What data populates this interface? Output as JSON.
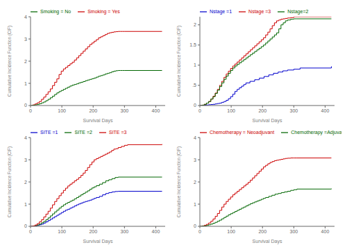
{
  "chart_data": [
    {
      "type": "step",
      "xlabel": "Survival Days",
      "ylabel": "Cumulative Incidence Function (CIF)",
      "xlim": [
        0,
        430
      ],
      "ylim": [
        0,
        4
      ],
      "xticks": [
        0,
        100,
        200,
        300,
        400
      ],
      "yticks": [
        0,
        1,
        2,
        3,
        4
      ],
      "grid": false,
      "legend": "upper left",
      "series": [
        {
          "name": "Smoking = Yes",
          "color": "#cc0000",
          "x": [
            0,
            7,
            14,
            21,
            28,
            35,
            42,
            49,
            56,
            63,
            70,
            77,
            84,
            91,
            98,
            105,
            112,
            119,
            126,
            133,
            140,
            147,
            154,
            161,
            168,
            175,
            182,
            189,
            196,
            203,
            210,
            217,
            224,
            231,
            238,
            245,
            252,
            259,
            266,
            273,
            280,
            287,
            294,
            301,
            420
          ],
          "values": [
            0,
            0.03,
            0.07,
            0.12,
            0.18,
            0.28,
            0.38,
            0.5,
            0.62,
            0.75,
            0.9,
            1.05,
            1.2,
            1.4,
            1.55,
            1.65,
            1.72,
            1.8,
            1.88,
            1.95,
            2.05,
            2.15,
            2.25,
            2.35,
            2.45,
            2.55,
            2.65,
            2.75,
            2.82,
            2.9,
            2.97,
            3.05,
            3.1,
            3.15,
            3.2,
            3.25,
            3.28,
            3.3,
            3.32,
            3.33,
            3.34,
            3.34,
            3.34,
            3.34,
            3.34
          ]
        },
        {
          "name": "Smoking = No",
          "color": "#006600",
          "x": [
            0,
            7,
            14,
            21,
            28,
            35,
            42,
            49,
            56,
            63,
            70,
            77,
            84,
            91,
            98,
            105,
            112,
            119,
            126,
            133,
            140,
            147,
            154,
            161,
            168,
            175,
            182,
            189,
            196,
            203,
            210,
            217,
            224,
            231,
            238,
            245,
            252,
            259,
            266,
            273,
            280,
            287,
            294,
            301,
            420
          ],
          "values": [
            0,
            0.01,
            0.03,
            0.05,
            0.08,
            0.12,
            0.16,
            0.22,
            0.28,
            0.35,
            0.42,
            0.5,
            0.57,
            0.63,
            0.68,
            0.73,
            0.78,
            0.83,
            0.88,
            0.92,
            0.95,
            0.98,
            1.02,
            1.05,
            1.08,
            1.12,
            1.15,
            1.18,
            1.21,
            1.24,
            1.28,
            1.32,
            1.35,
            1.38,
            1.42,
            1.45,
            1.48,
            1.52,
            1.55,
            1.57,
            1.58,
            1.58,
            1.58,
            1.58,
            1.58
          ]
        }
      ]
    },
    {
      "type": "step",
      "xlabel": "Survival Days",
      "ylabel": "Cumulative Incidence Function (CIF)",
      "xlim": [
        0,
        430
      ],
      "ylim": [
        0,
        2.2
      ],
      "xticks": [
        0,
        100,
        200,
        300,
        400
      ],
      "yticks": [
        0,
        {
          "value": 0.5,
          "label": ".5"
        },
        1,
        1.5,
        2
      ],
      "grid": false,
      "legend": "upper left",
      "series": [
        {
          "name": "Nstage =1",
          "color": "#0000cc",
          "x": [
            0,
            7,
            14,
            21,
            28,
            35,
            42,
            49,
            56,
            63,
            70,
            77,
            84,
            91,
            98,
            105,
            112,
            119,
            126,
            133,
            140,
            147,
            160,
            175,
            190,
            205,
            220,
            235,
            250,
            265,
            280,
            300,
            320,
            420
          ],
          "values": [
            0,
            0.005,
            0.01,
            0.015,
            0.02,
            0.025,
            0.03,
            0.04,
            0.05,
            0.06,
            0.08,
            0.1,
            0.13,
            0.17,
            0.22,
            0.28,
            0.35,
            0.4,
            0.44,
            0.48,
            0.52,
            0.56,
            0.6,
            0.64,
            0.68,
            0.72,
            0.76,
            0.8,
            0.83,
            0.86,
            0.88,
            0.9,
            0.93,
            0.97
          ]
        },
        {
          "name": "Nstage =3",
          "color": "#cc0000",
          "x": [
            0,
            7,
            14,
            21,
            28,
            35,
            42,
            49,
            56,
            63,
            70,
            77,
            84,
            91,
            98,
            105,
            112,
            119,
            126,
            133,
            140,
            147,
            154,
            161,
            168,
            175,
            182,
            189,
            196,
            203,
            210,
            217,
            224,
            231,
            238,
            245,
            252,
            259,
            266,
            273,
            280,
            290,
            300,
            420
          ],
          "values": [
            0,
            0.01,
            0.03,
            0.06,
            0.1,
            0.16,
            0.23,
            0.31,
            0.4,
            0.5,
            0.6,
            0.7,
            0.78,
            0.85,
            0.92,
            0.98,
            1.03,
            1.08,
            1.13,
            1.18,
            1.23,
            1.28,
            1.33,
            1.38,
            1.43,
            1.48,
            1.53,
            1.58,
            1.63,
            1.68,
            1.75,
            1.82,
            1.9,
            1.98,
            2.05,
            2.1,
            2.12,
            2.14,
            2.15,
            2.16,
            2.17,
            2.18,
            2.2,
            2.2
          ]
        },
        {
          "name": "Nstage=2",
          "color": "#006600",
          "x": [
            0,
            7,
            14,
            21,
            28,
            35,
            42,
            49,
            56,
            63,
            70,
            77,
            84,
            91,
            98,
            105,
            112,
            119,
            126,
            133,
            140,
            147,
            154,
            161,
            168,
            175,
            182,
            189,
            196,
            203,
            210,
            217,
            224,
            231,
            238,
            245,
            252,
            259,
            266,
            273,
            280,
            290,
            300,
            310,
            420
          ],
          "values": [
            0,
            0.01,
            0.03,
            0.06,
            0.1,
            0.16,
            0.22,
            0.3,
            0.38,
            0.47,
            0.56,
            0.65,
            0.73,
            0.8,
            0.87,
            0.93,
            0.98,
            1.02,
            1.06,
            1.1,
            1.14,
            1.18,
            1.22,
            1.26,
            1.3,
            1.34,
            1.38,
            1.42,
            1.46,
            1.5,
            1.55,
            1.6,
            1.65,
            1.7,
            1.75,
            1.8,
            1.9,
            2.0,
            2.05,
            2.1,
            2.12,
            2.14,
            2.15,
            2.15,
            2.15
          ]
        }
      ]
    },
    {
      "type": "step",
      "xlabel": "Survival Days",
      "ylabel": "Cumulative Incidence Function (CIF)",
      "xlim": [
        0,
        430
      ],
      "ylim": [
        0,
        4
      ],
      "xticks": [
        0,
        100,
        200,
        300,
        400
      ],
      "yticks": [
        0,
        1,
        2,
        3,
        4
      ],
      "grid": false,
      "legend": "upper left",
      "series": [
        {
          "name": "SITE =1",
          "color": "#0000cc",
          "x": [
            0,
            7,
            14,
            21,
            28,
            35,
            42,
            49,
            56,
            63,
            70,
            77,
            84,
            91,
            98,
            105,
            112,
            119,
            126,
            133,
            140,
            147,
            154,
            161,
            168,
            175,
            182,
            189,
            196,
            203,
            210,
            220,
            230,
            240,
            250,
            260,
            270,
            280,
            420
          ],
          "values": [
            0,
            0.01,
            0.02,
            0.04,
            0.07,
            0.1,
            0.15,
            0.2,
            0.26,
            0.32,
            0.38,
            0.44,
            0.5,
            0.56,
            0.62,
            0.68,
            0.73,
            0.77,
            0.82,
            0.87,
            0.92,
            0.97,
            1.01,
            1.05,
            1.09,
            1.12,
            1.15,
            1.18,
            1.22,
            1.26,
            1.3,
            1.35,
            1.42,
            1.48,
            1.52,
            1.55,
            1.57,
            1.58,
            1.58
          ]
        },
        {
          "name": "SITE =2",
          "color": "#006600",
          "x": [
            0,
            7,
            14,
            21,
            28,
            35,
            42,
            49,
            56,
            63,
            70,
            77,
            84,
            91,
            98,
            105,
            112,
            119,
            126,
            133,
            140,
            147,
            154,
            161,
            168,
            175,
            182,
            189,
            196,
            203,
            210,
            220,
            230,
            240,
            250,
            260,
            270,
            280,
            420
          ],
          "values": [
            0,
            0.01,
            0.03,
            0.06,
            0.1,
            0.16,
            0.22,
            0.3,
            0.38,
            0.47,
            0.56,
            0.65,
            0.73,
            0.82,
            0.9,
            0.97,
            1.03,
            1.08,
            1.13,
            1.18,
            1.24,
            1.3,
            1.36,
            1.42,
            1.48,
            1.54,
            1.6,
            1.67,
            1.73,
            1.78,
            1.83,
            1.9,
            1.97,
            2.05,
            2.1,
            2.15,
            2.2,
            2.22,
            2.22
          ]
        },
        {
          "name": "SITE =3",
          "color": "#cc0000",
          "x": [
            0,
            7,
            14,
            21,
            28,
            35,
            42,
            49,
            56,
            63,
            70,
            77,
            84,
            91,
            98,
            105,
            112,
            119,
            126,
            133,
            140,
            147,
            154,
            161,
            168,
            175,
            182,
            189,
            196,
            203,
            210,
            217,
            224,
            231,
            238,
            245,
            252,
            259,
            266,
            273,
            280,
            290,
            300,
            310,
            420
          ],
          "values": [
            0,
            0.02,
            0.06,
            0.12,
            0.2,
            0.3,
            0.42,
            0.55,
            0.68,
            0.82,
            0.97,
            1.12,
            1.25,
            1.38,
            1.5,
            1.62,
            1.72,
            1.82,
            1.9,
            1.97,
            2.05,
            2.12,
            2.2,
            2.3,
            2.4,
            2.52,
            2.65,
            2.78,
            2.9,
            3.0,
            3.05,
            3.1,
            3.15,
            3.2,
            3.25,
            3.3,
            3.35,
            3.42,
            3.48,
            3.5,
            3.55,
            3.6,
            3.65,
            3.68,
            3.7
          ]
        }
      ]
    },
    {
      "type": "step",
      "xlabel": "Survival Days",
      "ylabel": "Cumulative Incidence Function (CIF)",
      "xlim": [
        0,
        430
      ],
      "ylim": [
        0,
        4
      ],
      "xticks": [
        0,
        100,
        200,
        300,
        400
      ],
      "yticks": [
        0,
        1,
        2,
        3,
        4
      ],
      "grid": false,
      "legend": "upper left",
      "series": [
        {
          "name": "Chemotherapy = Neoadjuvant",
          "color": "#cc0000",
          "x": [
            0,
            7,
            14,
            21,
            28,
            35,
            42,
            49,
            56,
            63,
            70,
            77,
            84,
            91,
            98,
            105,
            112,
            119,
            126,
            133,
            140,
            147,
            154,
            161,
            168,
            175,
            182,
            189,
            196,
            203,
            210,
            217,
            224,
            231,
            238,
            245,
            252,
            259,
            266,
            273,
            280,
            290,
            300,
            310,
            420
          ],
          "values": [
            0,
            0.02,
            0.05,
            0.09,
            0.15,
            0.23,
            0.33,
            0.45,
            0.58,
            0.72,
            0.87,
            1.0,
            1.12,
            1.22,
            1.32,
            1.42,
            1.5,
            1.58,
            1.66,
            1.74,
            1.82,
            1.9,
            1.98,
            2.08,
            2.18,
            2.28,
            2.38,
            2.48,
            2.58,
            2.68,
            2.75,
            2.82,
            2.88,
            2.92,
            2.96,
            2.98,
            3.0,
            3.02,
            3.04,
            3.06,
            3.07,
            3.08,
            3.08,
            3.08,
            3.08
          ]
        },
        {
          "name": "Chemotherapy =Adjuvant",
          "color": "#006600",
          "x": [
            0,
            7,
            14,
            21,
            28,
            35,
            42,
            49,
            56,
            63,
            70,
            77,
            84,
            91,
            98,
            105,
            112,
            119,
            126,
            133,
            140,
            147,
            154,
            161,
            168,
            175,
            182,
            189,
            196,
            203,
            210,
            220,
            230,
            240,
            250,
            260,
            270,
            280,
            290,
            300,
            310,
            420
          ],
          "values": [
            0,
            0.01,
            0.02,
            0.04,
            0.07,
            0.1,
            0.14,
            0.18,
            0.23,
            0.28,
            0.34,
            0.4,
            0.46,
            0.52,
            0.57,
            0.62,
            0.67,
            0.72,
            0.77,
            0.82,
            0.87,
            0.92,
            0.97,
            1.02,
            1.06,
            1.1,
            1.14,
            1.18,
            1.22,
            1.26,
            1.3,
            1.35,
            1.4,
            1.45,
            1.48,
            1.52,
            1.55,
            1.58,
            1.62,
            1.65,
            1.68,
            1.7
          ]
        }
      ]
    }
  ]
}
